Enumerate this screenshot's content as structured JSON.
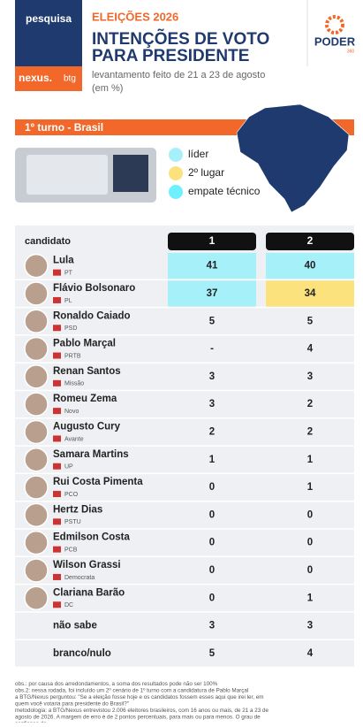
{
  "header": {
    "brand": "pesquisa",
    "sponsor": "nexus.",
    "sponsor_partner": "btg",
    "kicker": "ELEIÇÕES 2026",
    "title_lines": [
      "INTENÇÕES DE VOTO",
      "PARA PRESIDENTE"
    ],
    "subtitle_lines": [
      "levantamento feito de 21 a 23 de agosto",
      "(em %)"
    ],
    "logo": "PODER",
    "logo_sub": "360"
  },
  "section": "1º turno - Brasil",
  "legend": [
    {
      "label": "líder",
      "color": "#a6f0fa"
    },
    {
      "label": "2º lugar",
      "color": "#fbe27c"
    },
    {
      "label": "empate técnico",
      "color": "#6ff0ff"
    }
  ],
  "table": {
    "columns": [
      "candidato",
      "1",
      "2"
    ],
    "rows": [
      {
        "name": "Lula",
        "party": "PT",
        "values": [
          41,
          40
        ],
        "colors": [
          "#a6f0fa",
          "#a6f0fa"
        ]
      },
      {
        "name": "Flávio Bolsonaro",
        "party": "PL",
        "values": [
          37,
          34
        ],
        "colors": [
          "#a6f0fa",
          "#fbe27c"
        ]
      },
      {
        "name": "Ronaldo Caiado",
        "party": "PSD",
        "values": [
          5,
          5
        ]
      },
      {
        "name": "Pablo Marçal",
        "party": "PRTB",
        "values": [
          "-",
          4
        ]
      },
      {
        "name": "Renan Santos",
        "party": "Missão",
        "values": [
          3,
          3
        ]
      },
      {
        "name": "Romeu Zema",
        "party": "Novo",
        "values": [
          3,
          2
        ]
      },
      {
        "name": "Augusto Cury",
        "party": "Avante",
        "values": [
          2,
          2
        ]
      },
      {
        "name": "Samara Martins",
        "party": "UP",
        "values": [
          1,
          1
        ]
      },
      {
        "name": "Rui Costa Pimenta",
        "party": "PCO",
        "values": [
          0,
          1
        ]
      },
      {
        "name": "Hertz Dias",
        "party": "PSTU",
        "values": [
          0,
          0
        ]
      },
      {
        "name": "Edmilson Costa",
        "party": "PCB",
        "values": [
          0,
          0
        ]
      },
      {
        "name": "Wilson Grassi",
        "party": "Democrata",
        "values": [
          0,
          0
        ]
      },
      {
        "name": "Clariana Barão",
        "party": "DC",
        "values": [
          0,
          1
        ]
      },
      {
        "name": "não sabe",
        "values": [
          3,
          3
        ]
      },
      {
        "name": "branco/nulo",
        "values": [
          5,
          4
        ]
      }
    ]
  },
  "notes": [
    "obs.: por causa dos arredondamentos, a soma dos resultados pode não ser 100%",
    "obs.2: nessa rodada, foi incluído um 2º cenário de 1º turno com a candidatura de Pablo Marçal",
    "a BTG/Nexus perguntou: \"Se a eleição fosse hoje e os candidatos fossem esses aqui que irei ler, em quem você votaria para presidente do Brasil?\"",
    "metodologia: a BTG/Nexus entrevistou 2.006 eleitores brasileiros, com 16 anos ou mais, de 21 a 23 de agosto de 2026. A margem de erro é de 2 pontos percentuais, para mais ou para menos. O grau de confiança do"
  ]
}
